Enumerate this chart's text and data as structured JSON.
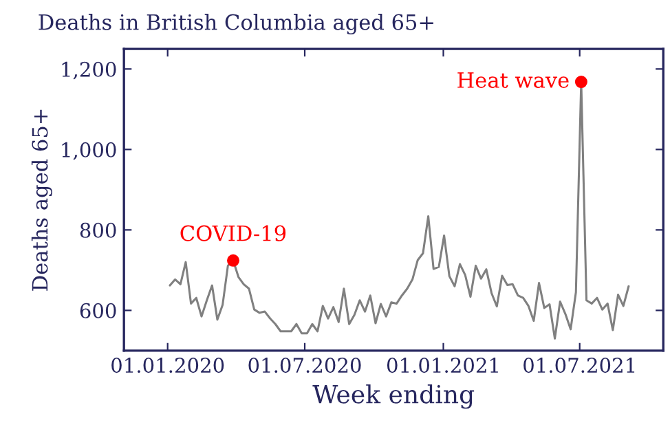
{
  "chart_data": {
    "type": "line",
    "title": "Deaths in British Columbia aged 65+",
    "xlabel": "Week ending",
    "ylabel": "Deaths aged 65+",
    "x": [
      "2020-01-04",
      "2020-01-11",
      "2020-01-18",
      "2020-01-25",
      "2020-02-01",
      "2020-02-08",
      "2020-02-15",
      "2020-02-22",
      "2020-02-29",
      "2020-03-07",
      "2020-03-14",
      "2020-03-21",
      "2020-03-28",
      "2020-04-04",
      "2020-04-11",
      "2020-04-18",
      "2020-04-25",
      "2020-05-02",
      "2020-05-09",
      "2020-05-16",
      "2020-05-23",
      "2020-05-30",
      "2020-06-06",
      "2020-06-13",
      "2020-06-20",
      "2020-06-27",
      "2020-07-04",
      "2020-07-11",
      "2020-07-18",
      "2020-07-25",
      "2020-08-01",
      "2020-08-08",
      "2020-08-15",
      "2020-08-22",
      "2020-08-29",
      "2020-09-05",
      "2020-09-12",
      "2020-09-19",
      "2020-09-26",
      "2020-10-03",
      "2020-10-10",
      "2020-10-17",
      "2020-10-24",
      "2020-10-31",
      "2020-11-07",
      "2020-11-14",
      "2020-11-21",
      "2020-11-28",
      "2020-12-05",
      "2020-12-12",
      "2020-12-19",
      "2020-12-26",
      "2021-01-02",
      "2021-01-09",
      "2021-01-16",
      "2021-01-23",
      "2021-01-30",
      "2021-02-06",
      "2021-02-13",
      "2021-02-20",
      "2021-02-27",
      "2021-03-06",
      "2021-03-13",
      "2021-03-20",
      "2021-03-27",
      "2021-04-03",
      "2021-04-10",
      "2021-04-17",
      "2021-04-24",
      "2021-05-01",
      "2021-05-08",
      "2021-05-15",
      "2021-05-22",
      "2021-05-29",
      "2021-06-05",
      "2021-06-12",
      "2021-06-19",
      "2021-06-26",
      "2021-07-03",
      "2021-07-10",
      "2021-07-17",
      "2021-07-24",
      "2021-07-31",
      "2021-08-07",
      "2021-08-14",
      "2021-08-21",
      "2021-08-28",
      "2021-09-04"
    ],
    "series": [
      {
        "color": "#808080",
        "values": [
          662,
          677,
          665,
          720,
          617,
          631,
          585,
          625,
          662,
          577,
          614,
          711,
          724,
          683,
          665,
          654,
          602,
          594,
          597,
          580,
          566,
          548,
          548,
          548,
          566,
          543,
          543,
          566,
          548,
          611,
          580,
          608,
          571,
          654,
          566,
          589,
          625,
          597,
          637,
          568,
          616,
          585,
          620,
          617,
          637,
          654,
          677,
          725,
          742,
          834,
          703,
          708,
          786,
          685,
          660,
          715,
          688,
          634,
          711,
          679,
          702,
          643,
          610,
          686,
          663,
          665,
          637,
          631,
          611,
          574,
          668,
          606,
          615,
          530,
          622,
          591,
          553,
          645,
          1168,
          625,
          617,
          631,
          602,
          617,
          551,
          639,
          611,
          660
        ]
      },
      {
        "type": "scatter",
        "color": "#ff0000",
        "x": [
          "2020-03-28",
          "2021-07-03"
        ],
        "values": [
          724,
          1168
        ]
      }
    ],
    "annotations": [
      {
        "text": "COVID-19",
        "x": "2020-03-28",
        "y": 724
      },
      {
        "text": "Heat wave",
        "x": "2021-07-03",
        "y": 1168
      }
    ],
    "xlim": [
      "2019-11-04",
      "2021-10-20"
    ],
    "xticks": [
      {
        "value": "2020-01-01",
        "label": "01.01.2020"
      },
      {
        "value": "2020-07-01",
        "label": "01.07.2020"
      },
      {
        "value": "2021-01-01",
        "label": "01.01.2021"
      },
      {
        "value": "2021-07-01",
        "label": "01.07.2021"
      }
    ],
    "ylim": [
      500,
      1250
    ],
    "yticks": [
      600,
      800,
      {
        "value": 1000,
        "label": "1,000"
      },
      {
        "value": 1200,
        "label": "1,200"
      }
    ],
    "grid": false,
    "legend": false
  }
}
